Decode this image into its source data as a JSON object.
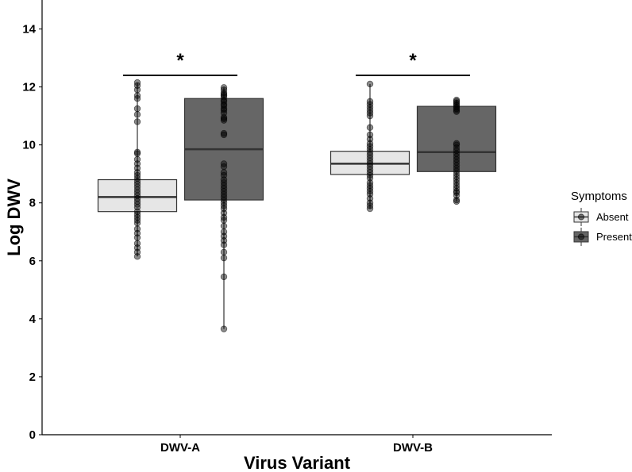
{
  "chart_data": {
    "type": "boxplot",
    "xlabel": "Virus Variant",
    "ylabel": "Log DWV",
    "ylim": [
      0,
      15
    ],
    "yticks": [
      0,
      2,
      4,
      6,
      8,
      10,
      12,
      14
    ],
    "categories": [
      "DWV-A",
      "DWV-B"
    ],
    "legend": {
      "title": "Symptoms",
      "position": "right",
      "entries": [
        {
          "name": "Absent",
          "fill": "#e6e6e6"
        },
        {
          "name": "Present",
          "fill": "#666666"
        }
      ]
    },
    "grid": false,
    "boxes": [
      {
        "category": "DWV-A",
        "group": "Absent",
        "min": 6.15,
        "q1": 7.7,
        "median": 8.2,
        "q3": 8.8,
        "max": 12.15,
        "points": [
          12.15,
          12.05,
          11.9,
          11.7,
          11.6,
          11.25,
          11.05,
          10.8,
          9.75,
          9.7,
          9.5,
          9.35,
          9.2,
          9.05,
          8.95,
          8.85,
          8.75,
          8.65,
          8.55,
          8.45,
          8.35,
          8.25,
          8.15,
          8.05,
          7.95,
          7.85,
          7.7,
          7.6,
          7.5,
          7.4,
          7.3,
          7.1,
          6.95,
          6.8,
          6.6,
          6.45,
          6.3,
          6.15
        ]
      },
      {
        "category": "DWV-A",
        "group": "Present",
        "min": 3.65,
        "q1": 8.1,
        "median": 9.85,
        "q3": 11.6,
        "max": 11.98,
        "points": [
          11.98,
          11.9,
          11.8,
          11.75,
          11.7,
          11.65,
          11.55,
          11.5,
          11.4,
          11.35,
          11.25,
          11.2,
          11.1,
          10.95,
          10.9,
          10.85,
          10.4,
          10.35,
          9.35,
          9.25,
          9.05,
          8.95,
          8.8,
          8.7,
          8.6,
          8.5,
          8.4,
          8.3,
          8.2,
          8.1,
          8.0,
          7.9,
          7.8,
          7.65,
          7.5,
          7.4,
          7.2,
          7.0,
          6.85,
          6.7,
          6.55,
          6.3,
          6.1,
          5.45,
          3.65
        ]
      },
      {
        "category": "DWV-B",
        "group": "Absent",
        "min": 7.8,
        "q1": 8.98,
        "median": 9.35,
        "q3": 9.78,
        "max": 12.1,
        "points": [
          12.1,
          11.5,
          11.4,
          11.3,
          11.2,
          11.1,
          11.0,
          10.6,
          10.35,
          10.2,
          10.05,
          9.95,
          9.85,
          9.75,
          9.65,
          9.55,
          9.45,
          9.35,
          9.25,
          9.15,
          9.05,
          8.95,
          8.85,
          8.7,
          8.6,
          8.5,
          8.4,
          8.3,
          8.15,
          8.0,
          7.9,
          7.8
        ]
      },
      {
        "category": "DWV-B",
        "group": "Present",
        "min": 8.05,
        "q1": 9.08,
        "median": 9.75,
        "q3": 11.33,
        "max": 11.55,
        "points": [
          11.55,
          11.5,
          11.45,
          11.4,
          11.35,
          11.3,
          11.25,
          11.2,
          11.15,
          10.05,
          10.0,
          9.9,
          9.8,
          9.7,
          9.6,
          9.5,
          9.4,
          9.3,
          9.2,
          9.1,
          9.0,
          8.9,
          8.8,
          8.7,
          8.6,
          8.5,
          8.4,
          8.35,
          8.25,
          8.1,
          8.05
        ]
      }
    ],
    "annotations": [
      {
        "text": "*",
        "category": "DWV-A",
        "y": 12.4
      },
      {
        "text": "*",
        "category": "DWV-B",
        "y": 12.4
      }
    ]
  }
}
